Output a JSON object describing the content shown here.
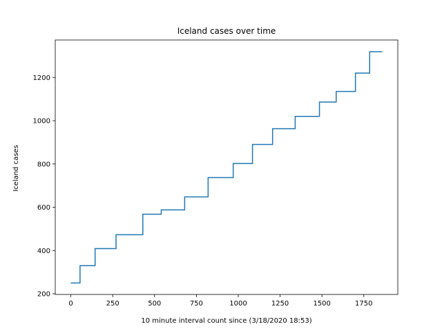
{
  "chart_data": {
    "type": "line",
    "title": "Iceland cases over time",
    "xlabel": "10 minute interval count since (3/18/2020 18:53)",
    "ylabel": "Iceland cases",
    "xlim": [
      -93,
      1953
    ],
    "ylim": [
      197,
      1373
    ],
    "xticks": [
      0,
      250,
      500,
      750,
      1000,
      1250,
      1500,
      1750
    ],
    "yticks": [
      200,
      400,
      600,
      800,
      1000,
      1200
    ],
    "grid": false,
    "legend": "none",
    "line_color": "#1f77b4",
    "series": [
      {
        "step": "post",
        "x": [
          0,
          55,
          145,
          270,
          430,
          540,
          680,
          820,
          970,
          1085,
          1205,
          1340,
          1485,
          1585,
          1700,
          1785,
          1860
        ],
        "y": [
          250,
          330,
          409,
          473,
          568,
          588,
          648,
          737,
          802,
          890,
          963,
          1020,
          1086,
          1135,
          1220,
          1319,
          1319
        ]
      }
    ]
  }
}
